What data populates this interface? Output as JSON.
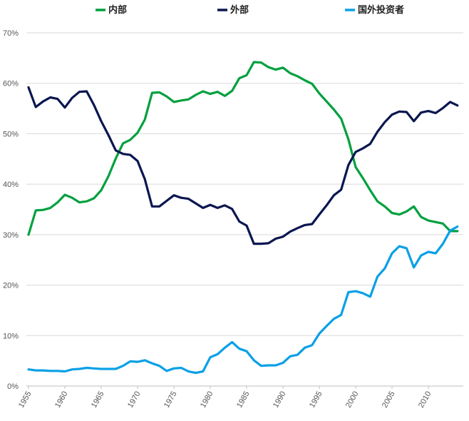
{
  "chart_data": {
    "type": "line",
    "title": "",
    "xlabel": "",
    "ylabel": "",
    "ylim": [
      0,
      70
    ],
    "xlim": [
      1955,
      2015
    ],
    "y_ticks": [
      "0%",
      "10%",
      "20%",
      "30%",
      "40%",
      "50%",
      "60%",
      "70%"
    ],
    "x_ticks": [
      "1955",
      "1960",
      "1965",
      "1970",
      "1975",
      "1980",
      "1985",
      "1990",
      "1995",
      "2000",
      "2005",
      "2010"
    ],
    "grid": true,
    "legend_position": "top",
    "x": [
      1955,
      1956,
      1957,
      1958,
      1959,
      1960,
      1961,
      1962,
      1963,
      1964,
      1965,
      1966,
      1967,
      1968,
      1969,
      1970,
      1971,
      1972,
      1973,
      1974,
      1975,
      1976,
      1977,
      1978,
      1979,
      1980,
      1981,
      1982,
      1983,
      1984,
      1985,
      1986,
      1987,
      1988,
      1989,
      1990,
      1991,
      1992,
      1993,
      1994,
      1995,
      1996,
      1997,
      1998,
      1999,
      2000,
      2001,
      2002,
      2003,
      2004,
      2005,
      2006,
      2007,
      2008,
      2009,
      2010,
      2011,
      2012,
      2013,
      2014
    ],
    "series": [
      {
        "name": "内部",
        "color": "#00a03e",
        "values": [
          30.0,
          34.8,
          34.9,
          35.3,
          36.4,
          37.9,
          37.3,
          36.4,
          36.6,
          37.2,
          38.8,
          41.6,
          45.1,
          48.1,
          48.8,
          50.2,
          52.8,
          58.1,
          58.2,
          57.4,
          56.3,
          56.6,
          56.8,
          57.7,
          58.4,
          57.9,
          58.3,
          57.5,
          58.5,
          61.0,
          61.6,
          64.2,
          64.1,
          63.2,
          62.7,
          63.1,
          62.0,
          61.4,
          60.6,
          59.9,
          58.0,
          56.4,
          54.8,
          53.0,
          48.9,
          43.4,
          41.2,
          38.8,
          36.6,
          35.6,
          34.3,
          34.0,
          34.6,
          35.6,
          33.5,
          32.8,
          32.5,
          32.2,
          30.7,
          30.7
        ]
      },
      {
        "name": "外部",
        "color": "#0a1650",
        "values": [
          59.2,
          55.3,
          56.4,
          57.2,
          56.9,
          55.2,
          57.1,
          58.3,
          58.4,
          55.7,
          52.5,
          49.7,
          46.7,
          46.0,
          45.8,
          44.6,
          41.0,
          35.6,
          35.6,
          36.7,
          37.8,
          37.3,
          37.1,
          36.2,
          35.3,
          35.9,
          35.3,
          35.8,
          35.1,
          32.6,
          31.8,
          28.2,
          28.2,
          28.3,
          29.2,
          29.6,
          30.6,
          31.3,
          31.9,
          32.1,
          34.0,
          35.8,
          37.8,
          38.9,
          43.8,
          46.4,
          47.1,
          48.0,
          50.4,
          52.3,
          53.8,
          54.4,
          54.3,
          52.5,
          54.2,
          54.5,
          54.1,
          55.1,
          56.3,
          55.6
        ]
      },
      {
        "name": "国外投资者",
        "color": "#0aa0e6",
        "values": [
          3.3,
          3.1,
          3.1,
          3.0,
          3.0,
          2.9,
          3.3,
          3.4,
          3.6,
          3.5,
          3.4,
          3.4,
          3.4,
          4.0,
          4.9,
          4.8,
          5.1,
          4.5,
          4.0,
          3.0,
          3.5,
          3.6,
          2.9,
          2.6,
          2.9,
          5.7,
          6.3,
          7.6,
          8.7,
          7.4,
          6.9,
          5.1,
          4.0,
          4.1,
          4.1,
          4.6,
          5.9,
          6.2,
          7.6,
          8.1,
          10.4,
          11.9,
          13.3,
          14.1,
          18.6,
          18.8,
          18.4,
          17.7,
          21.7,
          23.3,
          26.3,
          27.7,
          27.3,
          23.5,
          25.9,
          26.6,
          26.3,
          28.2,
          30.8,
          31.6
        ]
      }
    ]
  }
}
